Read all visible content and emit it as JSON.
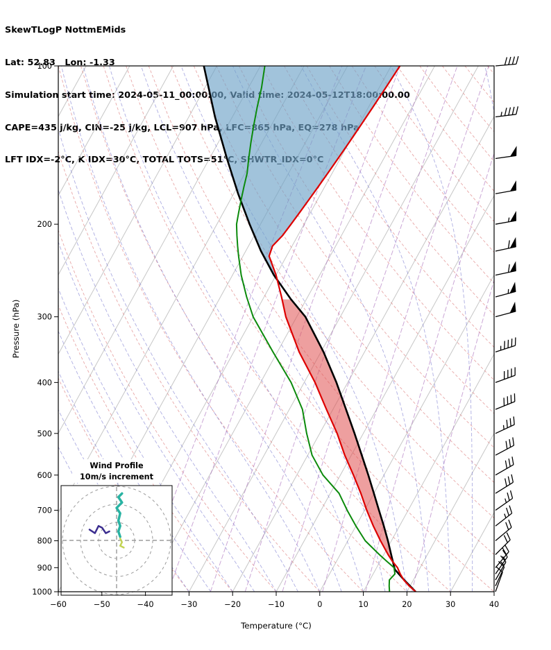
{
  "header": {
    "line1": "SkewTLogP NottmEMids",
    "line2": "Lat: 52.83   Lon: -1.33",
    "line3": "Simulation start time: 2024-05-11_00:00:00, Valid time: 2024-05-12T18:00:00.00",
    "line4": "CAPE=435 j/kg, CIN=-25 j/kg, LCL=907 hPa, LFC=865 hPa, EQ=278 hPa",
    "line5": "LFT IDX=-2°C, K IDX=30°C, TOTAL TOTS=51°C, SHWTR_IDX=0°C"
  },
  "chart_data": {
    "type": "line",
    "variant": "skew-t-log-p",
    "title": "SkewTLogP NottmEMids",
    "station": {
      "lat": 52.83,
      "lon": -1.33
    },
    "times": {
      "simulation_start": "2024-05-11_00:00:00",
      "valid": "2024-05-12T18:00:00.00"
    },
    "indices": {
      "cape_jkg": 435,
      "cin_jkg": -25,
      "lcl_hpa": 907,
      "lfc_hpa": 865,
      "eq_hpa": 278,
      "lifted_index_c": -2,
      "k_index_c": 30,
      "total_totals_c": 51,
      "showalter_index_c": 0
    },
    "xlabel": "Temperature (°C)",
    "ylabel": "Pressure (hPa)",
    "xlim": [
      -60,
      40
    ],
    "plim": [
      100,
      1000
    ],
    "x_ticks": [
      -60,
      -50,
      -40,
      -30,
      -20,
      -10,
      0,
      10,
      20,
      30,
      40
    ],
    "y_ticks": [
      100,
      200,
      300,
      400,
      500,
      600,
      700,
      800,
      900,
      1000
    ],
    "sounding": {
      "pressure_hpa": [
        1000,
        975,
        950,
        925,
        900,
        875,
        850,
        800,
        750,
        700,
        650,
        600,
        550,
        500,
        450,
        400,
        350,
        300,
        275,
        250,
        230,
        220,
        210,
        200,
        190,
        180,
        170,
        160,
        150,
        140,
        130,
        120,
        110,
        100
      ],
      "temperature_c": [
        22.0,
        19.8,
        17.8,
        16.2,
        14.8,
        12.8,
        11.0,
        7.5,
        4.0,
        0.5,
        -3.0,
        -7.0,
        -11.5,
        -16.0,
        -21.5,
        -27.5,
        -35.0,
        -42.5,
        -46.0,
        -50.0,
        -54.0,
        -54.5,
        -53.5,
        -53.0,
        -52.5,
        -52.0,
        -51.5,
        -51.0,
        -50.5,
        -50.0,
        -49.5,
        -49.0,
        -48.5,
        -48.0
      ],
      "dewpoint_c": [
        16.0,
        15.2,
        14.5,
        15.0,
        14.0,
        11.5,
        9.0,
        4.0,
        0.0,
        -4.0,
        -8.0,
        -14.0,
        -19.0,
        -23.0,
        -27.0,
        -33.0,
        -41.0,
        -50.0,
        -54.0,
        -58.0,
        -61.0,
        -62.5,
        -64.0,
        -65.5,
        -66.5,
        -67.5,
        -68.5,
        -69.5,
        -71.0,
        -72.5,
        -74.0,
        -75.5,
        -77.0,
        -79.0
      ]
    },
    "parcel": {
      "pressure_hpa": [
        1000,
        950,
        907,
        875,
        850,
        800,
        750,
        700,
        650,
        600,
        550,
        500,
        450,
        400,
        350,
        300,
        278,
        250,
        225,
        200,
        175,
        150,
        125,
        100
      ],
      "temperature_c": [
        22.0,
        17.9,
        14.4,
        12.9,
        11.7,
        9.2,
        6.4,
        3.3,
        0.0,
        -3.6,
        -7.6,
        -12.0,
        -17.0,
        -22.6,
        -29.4,
        -38.0,
        -43.5,
        -50.5,
        -56.5,
        -62.5,
        -69.0,
        -76.0,
        -84.0,
        -93.0
      ]
    },
    "shading": {
      "positive_area": {
        "p_bottom": 865,
        "p_top": 278,
        "color": "#e05050",
        "opacity": 0.55
      },
      "negative_area_above_eq": {
        "p_bottom": 278,
        "p_top": 100,
        "color": "#6fa3c8",
        "opacity": 0.65
      }
    },
    "wind_barbs": {
      "pressure_hpa": [
        1000,
        975,
        950,
        925,
        900,
        850,
        800,
        750,
        700,
        650,
        600,
        550,
        500,
        450,
        400,
        350,
        300,
        275,
        250,
        225,
        200,
        175,
        150,
        125,
        100
      ],
      "direction_deg": [
        200,
        205,
        210,
        215,
        220,
        225,
        230,
        232,
        235,
        238,
        240,
        242,
        245,
        248,
        250,
        252,
        255,
        255,
        258,
        258,
        260,
        260,
        262,
        263,
        265
      ],
      "speed_kt": [
        10,
        12,
        15,
        15,
        18,
        20,
        22,
        25,
        25,
        28,
        30,
        32,
        35,
        38,
        42,
        45,
        50,
        55,
        60,
        60,
        55,
        50,
        50,
        45,
        40
      ]
    },
    "hodograph": {
      "title_line1": "Wind Profile",
      "title_line2": "10m/s increment",
      "ring_interval_ms": 10,
      "rings_ms": [
        10,
        20,
        30
      ],
      "segments": [
        {
          "name": "mid-level-winds",
          "color": "#3b2d8f",
          "points": [
            [
              -15,
              6
            ],
            [
              -12,
              4
            ],
            [
              -10,
              8
            ],
            [
              -8,
              7
            ],
            [
              -6,
              4
            ],
            [
              -4,
              5
            ]
          ]
        },
        {
          "name": "upper-level-winds",
          "color": "#2ab3a3",
          "points": [
            [
              3,
              26
            ],
            [
              1,
              24
            ],
            [
              3,
              21
            ],
            [
              0,
              18
            ],
            [
              2,
              15
            ],
            [
              1,
              11
            ],
            [
              2,
              8
            ],
            [
              1,
              5
            ],
            [
              2,
              2
            ]
          ]
        },
        {
          "name": "low-level-winds",
          "color": "#c3d455",
          "points": [
            [
              2,
              1
            ],
            [
              3,
              -1
            ],
            [
              2,
              -3
            ],
            [
              4,
              -4
            ]
          ]
        }
      ]
    },
    "background": {
      "isotherms": {
        "min_c": -140,
        "max_c": 40,
        "step_c": 10
      },
      "dry_adiabats_theta_c": {
        "min": -30,
        "max": 200,
        "step": 10
      },
      "moist_adiabats_t0_c": {
        "min": -40,
        "max": 40,
        "step": 5
      },
      "mixing_ratio_g_kg": [
        0.1,
        0.2,
        0.5,
        1,
        2,
        4,
        8,
        16
      ]
    },
    "colors": {
      "temperature": "#dd0000",
      "dewpoint": "#0b8a0b",
      "parcel": "#000000",
      "isotherm": "#c6c6c6",
      "dry_adiabat": "#e08a8a",
      "moist_adiabat": "#7777cf",
      "mixing_ratio": "#a86cbb",
      "barbs": "#000000",
      "frame": "#000000"
    }
  }
}
